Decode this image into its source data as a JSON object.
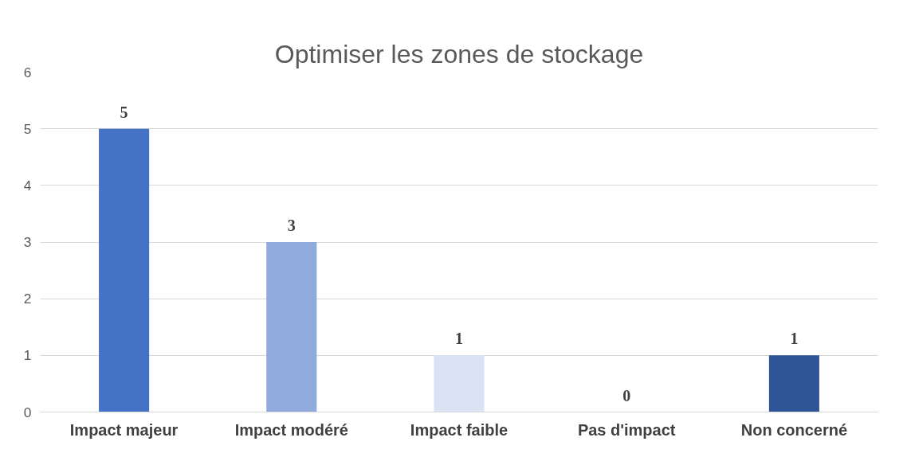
{
  "chart_data": {
    "type": "bar",
    "title": "Optimiser les zones de stockage",
    "categories": [
      "Impact majeur",
      "Impact modéré",
      "Impact faible",
      "Pas d'impact",
      "Non concerné"
    ],
    "values": [
      5,
      3,
      1,
      0,
      1
    ],
    "colors": [
      "#4472c4",
      "#8faadc",
      "#dae3f3",
      "#c5d3ec",
      "#2f5597"
    ],
    "ylim": [
      0,
      6
    ],
    "yticks": [
      0,
      1,
      2,
      3,
      4,
      5,
      6
    ],
    "grid": "y",
    "data_labels": true
  }
}
